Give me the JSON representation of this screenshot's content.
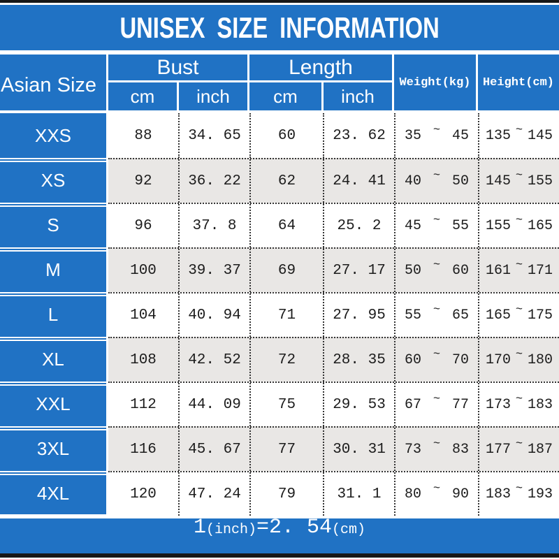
{
  "title": "UNISEX SIZE INFORMATION",
  "tilde": "~",
  "header": {
    "size_column": "Asian Size",
    "bust": {
      "label": "Bust",
      "cm": "cm",
      "inch": "inch"
    },
    "length": {
      "label": "Length",
      "cm": "cm",
      "inch": "inch"
    },
    "weight": "Weight(kg)",
    "height": "Height(cm)"
  },
  "rows": [
    {
      "size": "XXS",
      "bust_cm": "88",
      "bust_inch": "34. 65",
      "length_cm": "60",
      "length_inch": "23. 62",
      "weight_min": "35",
      "weight_max": "45",
      "height_min": "135",
      "height_max": "145"
    },
    {
      "size": "XS",
      "bust_cm": "92",
      "bust_inch": "36. 22",
      "length_cm": "62",
      "length_inch": "24. 41",
      "weight_min": "40",
      "weight_max": "50",
      "height_min": "145",
      "height_max": "155"
    },
    {
      "size": "S",
      "bust_cm": "96",
      "bust_inch": "37. 8",
      "length_cm": "64",
      "length_inch": "25. 2",
      "weight_min": "45",
      "weight_max": "55",
      "height_min": "155",
      "height_max": "165"
    },
    {
      "size": "M",
      "bust_cm": "100",
      "bust_inch": "39. 37",
      "length_cm": "69",
      "length_inch": "27. 17",
      "weight_min": "50",
      "weight_max": "60",
      "height_min": "161",
      "height_max": "171"
    },
    {
      "size": "L",
      "bust_cm": "104",
      "bust_inch": "40. 94",
      "length_cm": "71",
      "length_inch": "27. 95",
      "weight_min": "55",
      "weight_max": "65",
      "height_min": "165",
      "height_max": "175"
    },
    {
      "size": "XL",
      "bust_cm": "108",
      "bust_inch": "42. 52",
      "length_cm": "72",
      "length_inch": "28. 35",
      "weight_min": "60",
      "weight_max": "70",
      "height_min": "170",
      "height_max": "180"
    },
    {
      "size": "XXL",
      "bust_cm": "112",
      "bust_inch": "44. 09",
      "length_cm": "75",
      "length_inch": "29. 53",
      "weight_min": "67",
      "weight_max": "77",
      "height_min": "173",
      "height_max": "183"
    },
    {
      "size": "3XL",
      "bust_cm": "116",
      "bust_inch": "45. 67",
      "length_cm": "77",
      "length_inch": "30. 31",
      "weight_min": "73",
      "weight_max": "83",
      "height_min": "177",
      "height_max": "187"
    },
    {
      "size": "4XL",
      "bust_cm": "120",
      "bust_inch": "47. 24",
      "length_cm": "79",
      "length_inch": "31. 1",
      "weight_min": "80",
      "weight_max": "90",
      "height_min": "183",
      "height_max": "193"
    }
  ],
  "footer": "1(inch)=2.54(cm)",
  "footer_parts": [
    {
      "text": "1",
      "large": true
    },
    {
      "text": "(inch)",
      "large": false
    },
    {
      "text": "=2. 54",
      "large": true
    },
    {
      "text": "(cm)",
      "large": false
    }
  ],
  "colors": {
    "blue": "#2072c4",
    "alt_row_gray": "#e9e7e5",
    "text_dark": "#1c1c1c",
    "frame_black": "#171717",
    "white": "#ffffff"
  },
  "chart_data": {
    "type": "table",
    "title": "UNISEX SIZE INFORMATION",
    "columns": [
      "Asian Size",
      "Bust cm",
      "Bust inch",
      "Length cm",
      "Length inch",
      "Weight(kg)",
      "Height(cm)"
    ],
    "rows": [
      [
        "XXS",
        88,
        34.65,
        60,
        23.62,
        "35~45",
        "135~145"
      ],
      [
        "XS",
        92,
        36.22,
        62,
        24.41,
        "40~50",
        "145~155"
      ],
      [
        "S",
        96,
        37.8,
        64,
        25.2,
        "45~55",
        "155~165"
      ],
      [
        "M",
        100,
        39.37,
        69,
        27.17,
        "50~60",
        "161~171"
      ],
      [
        "L",
        104,
        40.94,
        71,
        27.95,
        "55~65",
        "165~175"
      ],
      [
        "XL",
        108,
        42.52,
        72,
        28.35,
        "60~70",
        "170~180"
      ],
      [
        "XXL",
        112,
        44.09,
        75,
        29.53,
        "67~77",
        "173~183"
      ],
      [
        "3XL",
        116,
        45.67,
        77,
        30.31,
        "73~83",
        "177~187"
      ],
      [
        "4XL",
        120,
        47.24,
        79,
        31.1,
        "80~90",
        "183~193"
      ]
    ],
    "footnote": "1(inch)=2.54(cm)",
    "layout": {
      "alternating_row_shading": true,
      "header_color": "#2072c4",
      "grid": "dotted"
    }
  }
}
